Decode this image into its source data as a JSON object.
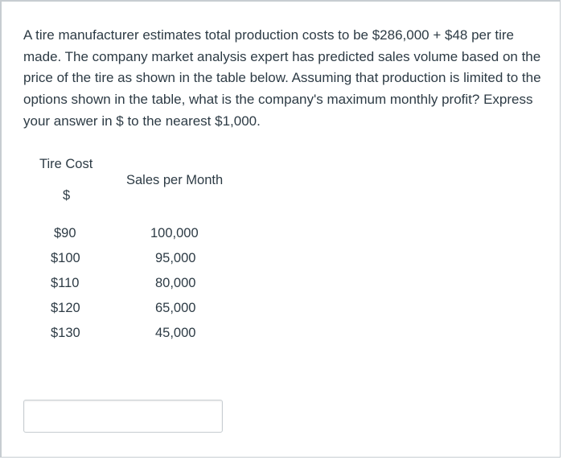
{
  "question": {
    "text": "A tire manufacturer estimates total production costs to be $286,000 + $48 per tire made. The company market analysis expert has predicted sales volume based on the price of the tire as shown in the table below. Assuming that production is limited to the options shown in the table, what is the company's maximum monthly profit? Express your answer in $ to the nearest $1,000."
  },
  "table": {
    "header_cost": "Tire Cost",
    "header_cost_unit": "$",
    "header_sales": "Sales per Month",
    "rows": [
      {
        "cost": "$90",
        "sales": "100,000"
      },
      {
        "cost": "$100",
        "sales": "95,000"
      },
      {
        "cost": "$110",
        "sales": "80,000"
      },
      {
        "cost": "$120",
        "sales": "65,000"
      },
      {
        "cost": "$130",
        "sales": "45,000"
      }
    ]
  },
  "answer": {
    "value": "",
    "placeholder": ""
  }
}
